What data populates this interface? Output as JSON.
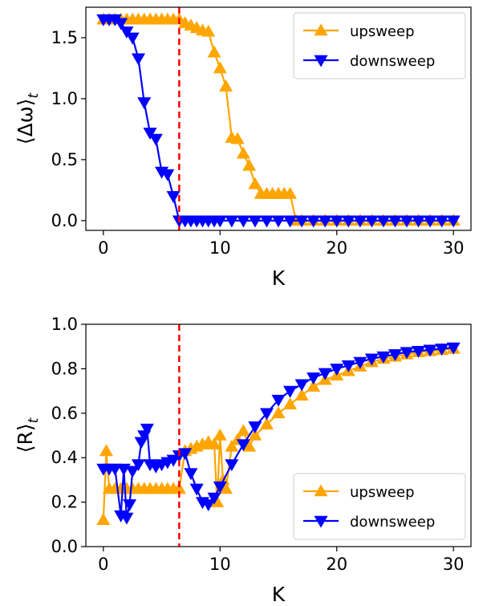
{
  "colors": {
    "upsweep": "#FFA500",
    "downsweep": "#0000FF",
    "critical_line": "#FF0000",
    "axes": "#000000",
    "legend_border": "#CCCCCC"
  },
  "chart_data": [
    {
      "type": "line",
      "xlabel": "K",
      "ylabel": "⟨Δω⟩_t",
      "ylabel_main": "⟨Δω⟩",
      "ylabel_sub": "t",
      "xlim": [
        -1.5,
        31.5
      ],
      "ylim": [
        -0.08,
        1.75
      ],
      "xticks": [
        0,
        10,
        20,
        30
      ],
      "xtick_labels": [
        "0",
        "10",
        "20",
        "30"
      ],
      "yticks": [
        0.0,
        0.5,
        1.0,
        1.5
      ],
      "ytick_labels": [
        "0.0",
        "0.5",
        "1.0",
        "1.5"
      ],
      "grid": false,
      "legend_position": "top-right",
      "critical_K": 6.5,
      "series": [
        {
          "name": "upsweep",
          "marker": "triangle-up",
          "x": [
            0,
            0.5,
            1,
            1.5,
            2,
            2.5,
            3,
            3.5,
            4,
            4.5,
            5,
            5.5,
            6,
            6.5,
            7,
            7.5,
            8,
            8.5,
            9,
            9.5,
            10,
            10.5,
            11,
            11.5,
            12,
            12.5,
            13,
            13.5,
            14,
            14.5,
            15,
            15.5,
            16,
            16.5,
            17,
            18,
            19,
            20,
            21,
            22,
            23,
            24,
            25,
            26,
            27,
            28,
            29,
            30
          ],
          "values": [
            1.65,
            1.65,
            1.65,
            1.65,
            1.65,
            1.65,
            1.65,
            1.65,
            1.65,
            1.65,
            1.65,
            1.65,
            1.65,
            1.65,
            1.62,
            1.6,
            1.58,
            1.56,
            1.55,
            1.38,
            1.25,
            1.1,
            0.68,
            0.67,
            0.55,
            0.45,
            0.3,
            0.22,
            0.22,
            0.22,
            0.22,
            0.22,
            0.22,
            0.0,
            0.0,
            0.0,
            0.0,
            0.0,
            0.0,
            0.0,
            0.0,
            0.0,
            0.0,
            0.0,
            0.0,
            0.0,
            0.0,
            0.0
          ]
        },
        {
          "name": "downsweep",
          "marker": "triangle-down",
          "x": [
            0,
            0.5,
            1,
            1.5,
            2,
            2.5,
            3,
            3.5,
            4,
            4.5,
            5,
            5.5,
            6,
            6.5,
            7,
            7.5,
            8,
            8.5,
            9,
            9.5,
            10,
            11,
            12,
            13,
            14,
            15,
            16,
            17,
            18,
            19,
            20,
            21,
            22,
            23,
            24,
            25,
            26,
            27,
            28,
            29,
            30
          ],
          "values": [
            1.65,
            1.65,
            1.65,
            1.62,
            1.55,
            1.5,
            1.33,
            0.97,
            0.72,
            0.67,
            0.4,
            0.38,
            0.2,
            0.0,
            0.0,
            0.0,
            0.0,
            0.0,
            0.0,
            0.0,
            0.0,
            0.0,
            0.0,
            0.0,
            0.0,
            0.0,
            0.0,
            0.0,
            0.0,
            0.0,
            0.0,
            0.0,
            0.0,
            0.0,
            0.0,
            0.0,
            0.0,
            0.0,
            0.0,
            0.0,
            0.0
          ]
        }
      ]
    },
    {
      "type": "line",
      "xlabel": "K",
      "ylabel": "⟨R⟩_t",
      "ylabel_main": "⟨R⟩",
      "ylabel_sub": "t",
      "xlim": [
        -1.5,
        31.5
      ],
      "ylim": [
        0.0,
        1.0
      ],
      "xticks": [
        0,
        10,
        20,
        30
      ],
      "xtick_labels": [
        "0",
        "10",
        "20",
        "30"
      ],
      "yticks": [
        0.0,
        0.2,
        0.4,
        0.6,
        0.8,
        1.0
      ],
      "ytick_labels": [
        "0.0",
        "0.2",
        "0.4",
        "0.6",
        "0.8",
        "1.0"
      ],
      "grid": false,
      "legend_position": "bottom-right",
      "critical_K": 6.5,
      "series": [
        {
          "name": "upsweep",
          "marker": "triangle-up",
          "x": [
            0,
            0.25,
            0.5,
            1,
            1.5,
            2,
            2.5,
            3,
            3.5,
            4,
            4.5,
            5,
            5.5,
            6,
            6.5,
            7,
            7.5,
            8,
            8.5,
            9,
            9.5,
            9.75,
            10,
            10.25,
            10.5,
            11,
            11.5,
            12,
            12.5,
            13,
            14,
            15,
            16,
            17,
            18,
            19,
            20,
            21,
            22,
            23,
            24,
            25,
            26,
            27,
            28,
            29,
            30
          ],
          "values": [
            0.12,
            0.43,
            0.26,
            0.26,
            0.26,
            0.26,
            0.26,
            0.26,
            0.26,
            0.26,
            0.26,
            0.26,
            0.26,
            0.26,
            0.26,
            0.43,
            0.44,
            0.45,
            0.46,
            0.47,
            0.46,
            0.2,
            0.5,
            0.3,
            0.26,
            0.45,
            0.48,
            0.52,
            0.45,
            0.5,
            0.55,
            0.6,
            0.64,
            0.68,
            0.72,
            0.75,
            0.77,
            0.79,
            0.81,
            0.83,
            0.845,
            0.855,
            0.865,
            0.875,
            0.88,
            0.885,
            0.89
          ]
        },
        {
          "name": "downsweep",
          "marker": "triangle-down",
          "x": [
            0,
            0.5,
            1,
            1.5,
            1.75,
            2,
            2.25,
            2.5,
            3,
            3.25,
            3.5,
            3.75,
            4,
            4.5,
            5,
            5.5,
            6,
            6.5,
            7,
            7.5,
            8,
            8.5,
            9,
            9.5,
            10,
            11,
            12,
            13,
            14,
            15,
            16,
            17,
            18,
            19,
            20,
            21,
            22,
            23,
            24,
            25,
            26,
            27,
            28,
            29,
            30
          ],
          "values": [
            0.35,
            0.35,
            0.35,
            0.14,
            0.35,
            0.13,
            0.19,
            0.34,
            0.37,
            0.47,
            0.5,
            0.53,
            0.37,
            0.36,
            0.37,
            0.38,
            0.39,
            0.41,
            0.42,
            0.33,
            0.26,
            0.2,
            0.19,
            0.22,
            0.27,
            0.37,
            0.46,
            0.54,
            0.6,
            0.66,
            0.7,
            0.73,
            0.76,
            0.78,
            0.8,
            0.815,
            0.83,
            0.845,
            0.855,
            0.865,
            0.875,
            0.88,
            0.885,
            0.89,
            0.895
          ]
        }
      ]
    }
  ]
}
